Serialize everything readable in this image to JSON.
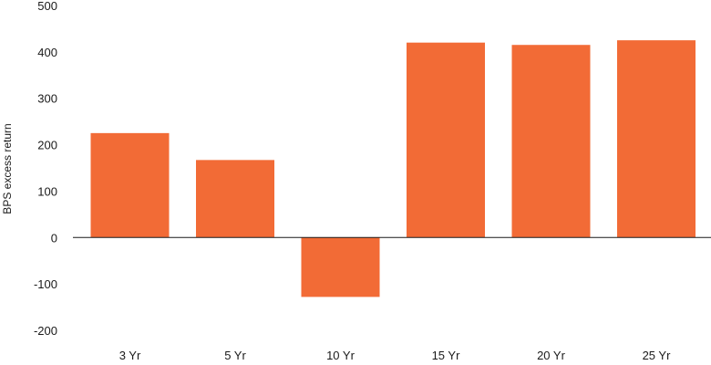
{
  "chart_data": {
    "type": "bar",
    "categories": [
      "3 Yr",
      "5 Yr",
      "10 Yr",
      "15 Yr",
      "20 Yr",
      "25 Yr"
    ],
    "values": [
      225,
      167,
      -128,
      420,
      415,
      425
    ],
    "title": "",
    "xlabel": "",
    "ylabel": "BPS excess return",
    "ylim": [
      -200,
      500
    ],
    "yticks": [
      500,
      400,
      300,
      200,
      100,
      0,
      -100,
      -200
    ],
    "grid": false,
    "legend": "none",
    "bar_color": "#F26B36",
    "zero_line_color": "#1a1a1a"
  }
}
